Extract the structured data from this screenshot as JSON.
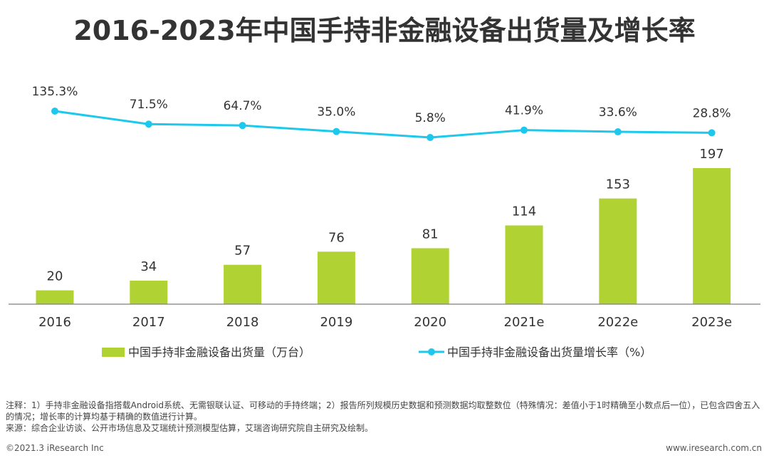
{
  "chart_data": {
    "type": "bar",
    "title": "2016-2023年中国手持非金融设备出货量及增长率",
    "categories": [
      "2016",
      "2017",
      "2018",
      "2019",
      "2020",
      "2021e",
      "2022e",
      "2023e"
    ],
    "series": [
      {
        "name": "中国手持非金融设备出货量（万台）",
        "type": "bar",
        "color": "#b0d232",
        "values": [
          20,
          34,
          57,
          76,
          81,
          114,
          153,
          197
        ],
        "labels": [
          "20",
          "34",
          "57",
          "76",
          "81",
          "114",
          "153",
          "197"
        ]
      },
      {
        "name": "中国手持非金融设备出货量增长率（%）",
        "type": "line",
        "color": "#1ec8ec",
        "values": [
          135.3,
          71.5,
          64.7,
          35.0,
          5.8,
          41.9,
          33.6,
          28.8
        ],
        "labels": [
          "135.3%",
          "71.5%",
          "64.7%",
          "35.0%",
          "5.8%",
          "41.9%",
          "33.6%",
          "28.8%"
        ]
      }
    ],
    "legend": "bottom",
    "grid": false
  },
  "notes": {
    "line1": "注释：1）手持非金融设备指搭载Android系统、无需银联认证、可移动的手持终端；2）报告所列规模历史数据和预测数据均取整数位（特殊情况：差值小于1时精确至小数点后一位），已包含四舍五入的情况；增长率的计算均基于精确的数值进行计算。",
    "line2": "来源：综合企业访谈、公开市场信息及艾瑞统计预测模型估算，艾瑞咨询研究院自主研究及绘制。"
  },
  "footer": {
    "copyright": "©2021.3 iResearch Inc",
    "website": "www.iresearch.com.cn"
  }
}
